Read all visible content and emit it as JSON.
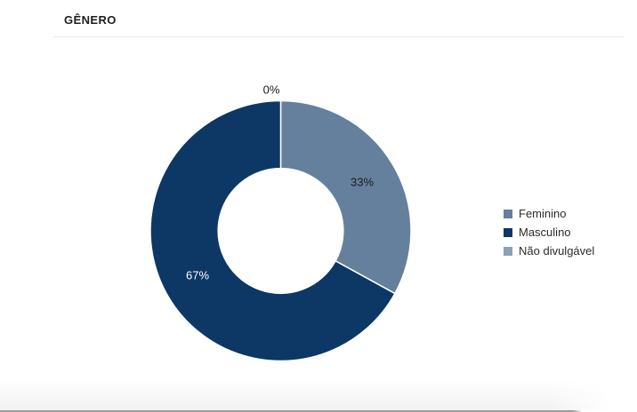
{
  "header": {
    "title": "GÊNERO"
  },
  "chart_data": {
    "type": "pie",
    "variant": "donut",
    "title": "GÊNERO",
    "categories": [
      "Feminino",
      "Masculino",
      "Não divulgável"
    ],
    "values": [
      33,
      67,
      0
    ],
    "unit": "%",
    "slice_labels": [
      "33%",
      "67%",
      "0%"
    ],
    "colors": [
      "#64809C",
      "#0D3765",
      "#8AA1B9"
    ],
    "slice_label_colors": [
      "#1a1a1a",
      "#ffffff",
      "#1a1a1a"
    ],
    "legend_position": "right",
    "donut_hole_ratio": 0.48,
    "start_angle_deg": 0,
    "direction": "clockwise",
    "grid": false
  }
}
